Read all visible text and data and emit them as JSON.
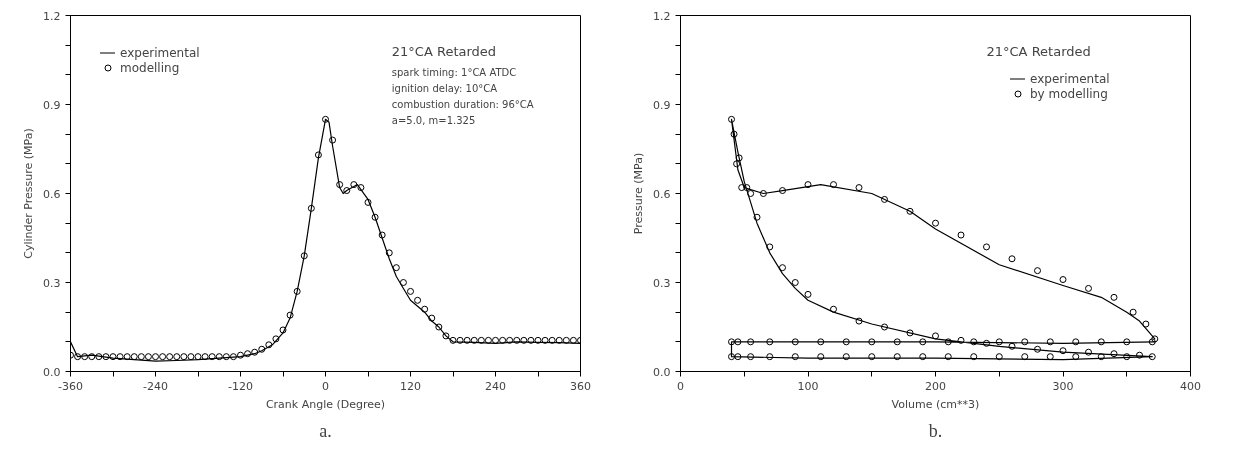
{
  "chart_data": [
    {
      "type": "line",
      "xlabel": "Crank Angle (Degree)",
      "ylabel": "Cylinder Pressure (MPa)",
      "legend": "top left",
      "grid": false,
      "xlim": [
        -360,
        360
      ],
      "ylim": [
        0,
        1.2
      ],
      "xticks": [
        -360,
        {
          "value": -300,
          "label": null
        },
        -240,
        {
          "value": -180,
          "label": null
        },
        -120,
        {
          "value": -60,
          "label": null
        },
        0,
        {
          "value": 60,
          "label": null
        },
        120,
        {
          "value": 180,
          "label": null
        },
        240,
        {
          "value": 300,
          "label": null
        },
        360
      ],
      "yticks": [
        {
          "value": 0,
          "label": "0.0"
        },
        {
          "value": 0.1,
          "label": null
        },
        {
          "value": 0.2,
          "label": null
        },
        0.3,
        {
          "value": 0.4,
          "label": null
        },
        {
          "value": 0.5,
          "label": null
        },
        0.6,
        {
          "value": 0.7,
          "label": null
        },
        {
          "value": 0.8,
          "label": null
        },
        0.9,
        {
          "value": 1.0,
          "label": null
        },
        {
          "value": 1.1,
          "label": null
        },
        1.2
      ],
      "annotations": [
        "21°CA Retarded",
        "spark timing: 1°CA ATDC",
        "ignition delay: 10°CA",
        "combustion duration: 96°CA",
        "a=5.0, m=1.325",
        "a."
      ],
      "series": [
        {
          "name": "experimental",
          "marker": "none",
          "color": "#000000",
          "x": [
            -360,
            -350,
            -330,
            -300,
            -270,
            -240,
            -210,
            -180,
            -150,
            -120,
            -100,
            -90,
            -75,
            -60,
            -50,
            -40,
            -30,
            -20,
            -10,
            0,
            5,
            10,
            20,
            25,
            30,
            45,
            60,
            70,
            80,
            90,
            100,
            110,
            120,
            130,
            140,
            150,
            160,
            170,
            180,
            210,
            240,
            270,
            300,
            330,
            360
          ],
          "values": [
            0.1,
            0.05,
            0.055,
            0.045,
            0.04,
            0.035,
            0.037,
            0.04,
            0.045,
            0.05,
            0.06,
            0.07,
            0.09,
            0.13,
            0.18,
            0.27,
            0.39,
            0.55,
            0.72,
            0.85,
            0.84,
            0.76,
            0.62,
            0.6,
            0.61,
            0.63,
            0.58,
            0.52,
            0.45,
            0.38,
            0.32,
            0.28,
            0.24,
            0.22,
            0.2,
            0.17,
            0.15,
            0.12,
            0.1,
            0.098,
            0.095,
            0.1,
            0.098,
            0.097,
            0.095
          ]
        },
        {
          "name": "modelling",
          "type": "scatter",
          "marker": "circle",
          "color": "#000000",
          "x": [
            -360,
            -350,
            -340,
            -330,
            -320,
            -310,
            -300,
            -290,
            -280,
            -270,
            -260,
            -250,
            -240,
            -230,
            -220,
            -210,
            -200,
            -190,
            -180,
            -170,
            -160,
            -150,
            -140,
            -130,
            -120,
            -110,
            -100,
            -90,
            -80,
            -70,
            -60,
            -50,
            -40,
            -30,
            -20,
            -10,
            0,
            10,
            20,
            30,
            40,
            50,
            60,
            70,
            80,
            90,
            100,
            110,
            120,
            130,
            140,
            150,
            160,
            170,
            180,
            190,
            200,
            210,
            220,
            230,
            240,
            250,
            260,
            270,
            280,
            290,
            300,
            310,
            320,
            330,
            340,
            350,
            360
          ],
          "values": [
            0.055,
            0.05,
            0.05,
            0.05,
            0.05,
            0.05,
            0.05,
            0.05,
            0.05,
            0.05,
            0.05,
            0.05,
            0.05,
            0.05,
            0.05,
            0.05,
            0.05,
            0.05,
            0.05,
            0.05,
            0.05,
            0.05,
            0.05,
            0.05,
            0.055,
            0.06,
            0.065,
            0.075,
            0.09,
            0.11,
            0.14,
            0.19,
            0.27,
            0.39,
            0.55,
            0.73,
            0.85,
            0.78,
            0.63,
            0.61,
            0.63,
            0.62,
            0.57,
            0.52,
            0.46,
            0.4,
            0.35,
            0.3,
            0.27,
            0.24,
            0.21,
            0.18,
            0.15,
            0.12,
            0.105,
            0.105,
            0.105,
            0.105,
            0.105,
            0.105,
            0.105,
            0.105,
            0.105,
            0.105,
            0.105,
            0.105,
            0.105,
            0.105,
            0.105,
            0.105,
            0.105,
            0.105,
            0.105
          ]
        }
      ]
    },
    {
      "type": "line",
      "xlabel": "Volume (cm**3)",
      "ylabel": "Pressure (MPa)",
      "legend": "top right",
      "grid": false,
      "xlim": [
        0,
        400
      ],
      "ylim": [
        0,
        1.2
      ],
      "xticks": [
        0,
        {
          "value": 50,
          "label": null
        },
        100,
        {
          "value": 150,
          "label": null
        },
        200,
        {
          "value": 250,
          "label": null
        },
        300,
        {
          "value": 350,
          "label": null
        },
        400
      ],
      "yticks": [
        {
          "value": 0,
          "label": "0.0"
        },
        {
          "value": 0.1,
          "label": null
        },
        {
          "value": 0.2,
          "label": null
        },
        0.3,
        {
          "value": 0.4,
          "label": null
        },
        {
          "value": 0.5,
          "label": null
        },
        0.6,
        {
          "value": 0.7,
          "label": null
        },
        {
          "value": 0.8,
          "label": null
        },
        0.9,
        {
          "value": 1.0,
          "label": null
        },
        {
          "value": 1.1,
          "label": null
        },
        1.2
      ],
      "annotations": [
        "21°CA Retarded",
        "b."
      ],
      "series": [
        {
          "name": "experimental",
          "marker": "none",
          "color": "#000000",
          "x": [
            372,
            300,
            200,
            100,
            40,
            40,
            100,
            200,
            300,
            370,
            300,
            250,
            200,
            150,
            120,
            100,
            90,
            80,
            70,
            60,
            50,
            45,
            40,
            45,
            50,
            65,
            80,
            110,
            150,
            180,
            200,
            250,
            300,
            330,
            350,
            360,
            372
          ],
          "values": [
            0.1,
            0.095,
            0.1,
            0.1,
            0.1,
            0.05,
            0.045,
            0.045,
            0.04,
            0.05,
            0.065,
            0.085,
            0.11,
            0.16,
            0.2,
            0.24,
            0.28,
            0.33,
            0.4,
            0.5,
            0.64,
            0.74,
            0.85,
            0.68,
            0.62,
            0.6,
            0.61,
            0.63,
            0.6,
            0.54,
            0.48,
            0.36,
            0.29,
            0.25,
            0.2,
            0.17,
            0.11
          ]
        },
        {
          "name": "by modelling",
          "type": "scatter",
          "marker": "circle",
          "color": "#000000",
          "x": [
            370,
            350,
            330,
            310,
            290,
            270,
            250,
            230,
            210,
            190,
            170,
            150,
            130,
            110,
            90,
            70,
            55,
            45,
            40,
            40,
            45,
            55,
            70,
            90,
            110,
            130,
            150,
            170,
            190,
            210,
            230,
            250,
            270,
            290,
            310,
            330,
            350,
            370,
            360,
            340,
            320,
            300,
            280,
            260,
            240,
            220,
            200,
            180,
            160,
            140,
            120,
            100,
            90,
            80,
            70,
            60,
            52,
            46,
            42,
            40,
            44,
            48,
            55,
            65,
            80,
            100,
            120,
            140,
            160,
            180,
            200,
            220,
            240,
            260,
            280,
            300,
            320,
            340,
            355,
            365,
            372
          ],
          "values": [
            0.1,
            0.1,
            0.1,
            0.1,
            0.1,
            0.1,
            0.1,
            0.1,
            0.1,
            0.1,
            0.1,
            0.1,
            0.1,
            0.1,
            0.1,
            0.1,
            0.1,
            0.1,
            0.1,
            0.05,
            0.05,
            0.05,
            0.05,
            0.05,
            0.05,
            0.05,
            0.05,
            0.05,
            0.05,
            0.05,
            0.05,
            0.05,
            0.05,
            0.05,
            0.05,
            0.05,
            0.05,
            0.05,
            0.055,
            0.06,
            0.065,
            0.07,
            0.075,
            0.085,
            0.095,
            0.105,
            0.12,
            0.13,
            0.15,
            0.17,
            0.21,
            0.26,
            0.3,
            0.35,
            0.42,
            0.52,
            0.62,
            0.72,
            0.8,
            0.85,
            0.7,
            0.62,
            0.6,
            0.6,
            0.61,
            0.63,
            0.63,
            0.62,
            0.58,
            0.54,
            0.5,
            0.46,
            0.42,
            0.38,
            0.34,
            0.31,
            0.28,
            0.25,
            0.2,
            0.16,
            0.11
          ]
        }
      ]
    }
  ]
}
